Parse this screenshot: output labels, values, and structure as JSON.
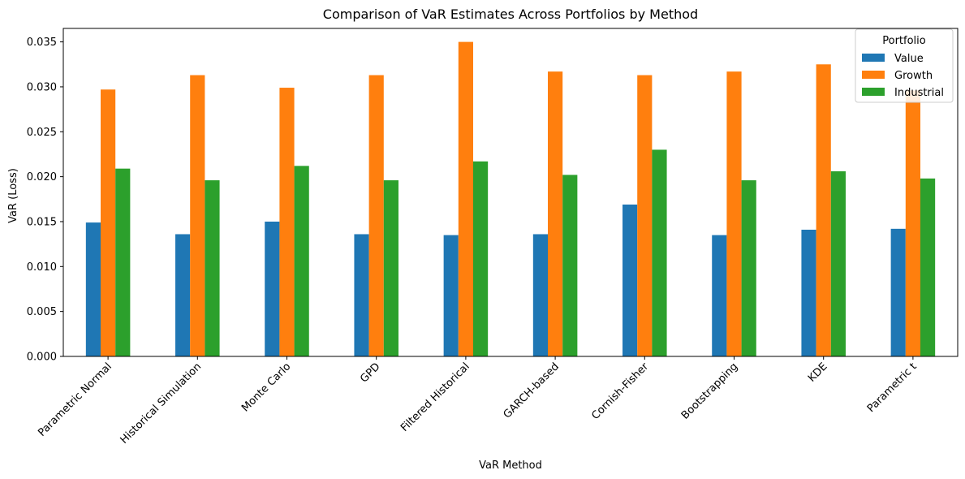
{
  "chart_data": {
    "type": "bar",
    "title": "Comparison of VaR Estimates Across Portfolios by Method",
    "xlabel": "VaR Method",
    "ylabel": "VaR (Loss)",
    "ylim": [
      0,
      0.0365
    ],
    "yticks": [
      "0.000",
      "0.005",
      "0.010",
      "0.015",
      "0.020",
      "0.025",
      "0.030",
      "0.035"
    ],
    "categories": [
      "Parametric Normal",
      "Historical Simulation",
      "Monte Carlo",
      "GPD",
      "Filtered Historical",
      "GARCH-based",
      "Cornish-Fisher",
      "Bootstrapping",
      "KDE",
      "Parametric t"
    ],
    "series": [
      {
        "name": "Value",
        "color": "#1f77b4",
        "values": [
          0.0149,
          0.0136,
          0.015,
          0.0136,
          0.0135,
          0.0136,
          0.0169,
          0.0135,
          0.0141,
          0.0142
        ]
      },
      {
        "name": "Growth",
        "color": "#ff7f0e",
        "values": [
          0.0297,
          0.0313,
          0.0299,
          0.0313,
          0.035,
          0.0317,
          0.0313,
          0.0317,
          0.0325,
          0.0296
        ]
      },
      {
        "name": "Industrial",
        "color": "#2ca02c",
        "values": [
          0.0209,
          0.0196,
          0.0212,
          0.0196,
          0.0217,
          0.0202,
          0.023,
          0.0196,
          0.0206,
          0.0198
        ]
      }
    ],
    "legend": {
      "title": "Portfolio",
      "position": "top-right"
    },
    "grid": false
  }
}
